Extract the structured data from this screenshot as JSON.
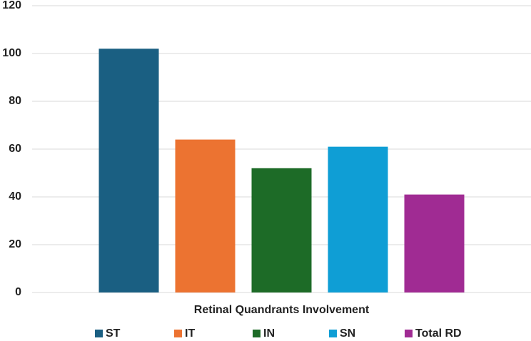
{
  "chart_data": {
    "type": "bar",
    "categories": [
      "Retinal Quandrants Involvement"
    ],
    "series": [
      {
        "name": "ST",
        "color": "#1a5f82",
        "values": [
          102
        ]
      },
      {
        "name": "IT",
        "color": "#ec7331",
        "values": [
          64
        ]
      },
      {
        "name": "IN",
        "color": "#1d6b27",
        "values": [
          52
        ]
      },
      {
        "name": "SN",
        "color": "#0f9ed5",
        "values": [
          61
        ]
      },
      {
        "name": "Total RD",
        "color": "#a02b93",
        "values": [
          41
        ]
      }
    ],
    "ylim": [
      0,
      120
    ],
    "yticks": [
      0,
      20,
      40,
      60,
      80,
      100,
      120
    ],
    "grid": true,
    "legend": "bottom"
  }
}
